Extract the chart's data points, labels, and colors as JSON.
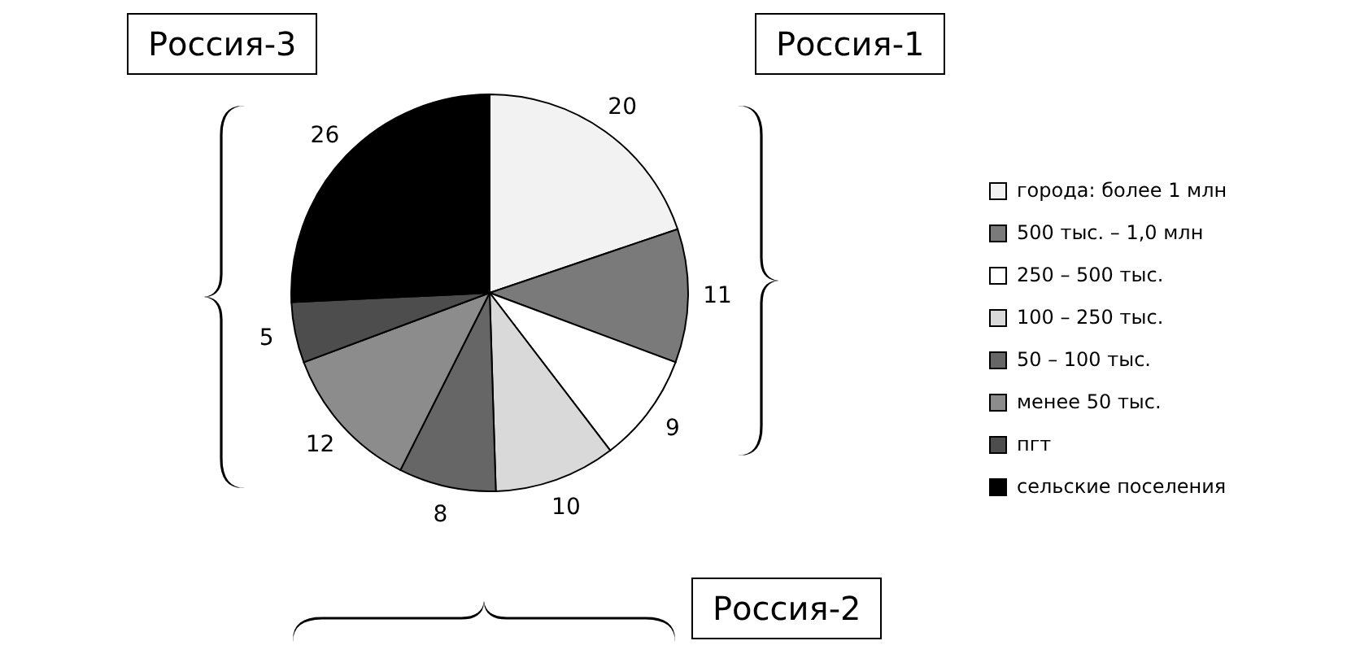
{
  "chart_data": {
    "type": "pie",
    "categories": [
      "города: более 1 млн",
      "500 тыс. – 1,0 млн",
      "250 – 500 тыс.",
      "100 – 250 тыс.",
      "50 – 100 тыс.",
      "менее 50 тыс.",
      "пгт",
      "сельские поселения"
    ],
    "values": [
      20,
      11,
      9,
      10,
      8,
      12,
      5,
      26
    ],
    "colors": [
      "#f2f2f2",
      "#7a7a7a",
      "#ffffff",
      "#d9d9d9",
      "#666666",
      "#8c8c8c",
      "#4d4d4d",
      "#000000"
    ],
    "data_labels": true,
    "legend": "right",
    "annotations": [
      "Россия-1",
      "Россия-2",
      "Россия-3"
    ]
  }
}
